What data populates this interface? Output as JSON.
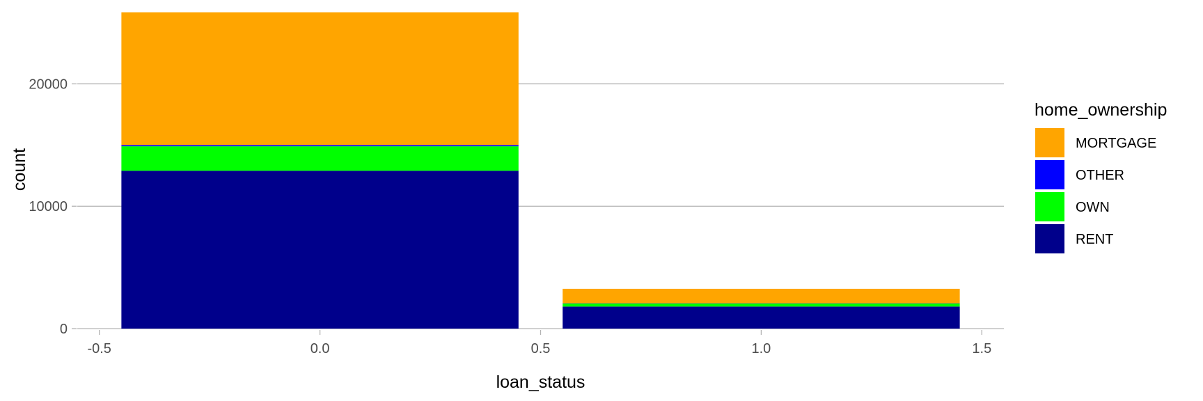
{
  "chart_data": {
    "type": "bar",
    "stacked": true,
    "xlabel": "loan_status",
    "ylabel": "count",
    "x": [
      0,
      1
    ],
    "bar_width": 0.9,
    "xlim": [
      -0.55,
      1.55
    ],
    "ylim": [
      0,
      26000
    ],
    "x_ticks": [
      -0.5,
      0.0,
      0.5,
      1.0,
      1.5
    ],
    "x_tick_labels": [
      "-0.5",
      "0.0",
      "0.5",
      "1.0",
      "1.5"
    ],
    "y_ticks": [
      0,
      10000,
      20000
    ],
    "y_tick_labels": [
      "0",
      "10000",
      "20000"
    ],
    "grid": true,
    "legend": {
      "title": "home_ownership",
      "position": "right",
      "order": [
        "MORTGAGE",
        "OTHER",
        "OWN",
        "RENT"
      ]
    },
    "series": [
      {
        "name": "RENT",
        "color": "#00008B",
        "values": [
          12900,
          1800
        ]
      },
      {
        "name": "OWN",
        "color": "#00FF00",
        "values": [
          2000,
          250
        ]
      },
      {
        "name": "OTHER",
        "color": "#0000FF",
        "values": [
          100,
          20
        ]
      },
      {
        "name": "MORTGAGE",
        "color": "#FFA500",
        "values": [
          10850,
          1180
        ]
      }
    ],
    "colors": {
      "grid": "#b3b3b3",
      "tick_label": "#4d4d4d"
    }
  }
}
